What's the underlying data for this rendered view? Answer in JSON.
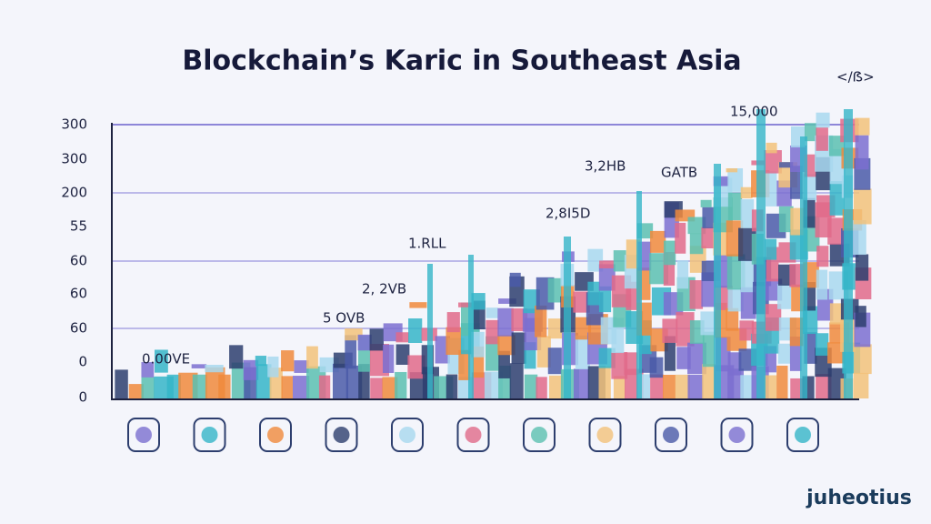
{
  "title": "Blockchain’s Karic in Southeast Asia",
  "y_axis_labels": [
    "300",
    "300",
    "200",
    "55",
    "60",
    "60",
    "60",
    "0",
    "0"
  ],
  "annotations": [
    {
      "text": "0.00VE"
    },
    {
      "text": "5 OVB"
    },
    {
      "text": "2, 2VB"
    },
    {
      "text": "1.RLL"
    },
    {
      "text": "2,8I5D"
    },
    {
      "text": "3,2HB"
    },
    {
      "text": "GATB"
    },
    {
      "text": "15,000"
    },
    {
      "text": "</ẞ>"
    }
  ],
  "brand": "juheotius"
}
